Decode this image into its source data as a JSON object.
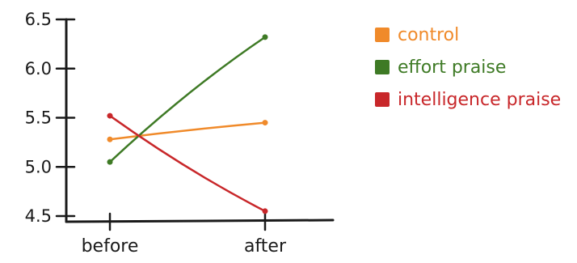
{
  "chart_data": {
    "type": "line",
    "title": "",
    "xlabel": "",
    "ylabel": "",
    "categories": [
      "before",
      "after"
    ],
    "y_ticks": [
      "4.5",
      "5.0",
      "5.5",
      "6.0",
      "6.5"
    ],
    "ylim": [
      4.5,
      6.5
    ],
    "grid": false,
    "legend_position": "right",
    "series": [
      {
        "name": "control",
        "values": [
          5.28,
          5.45
        ],
        "color": "#f08a2a"
      },
      {
        "name": "effort praise",
        "values": [
          5.05,
          6.32
        ],
        "color": "#3e7a25"
      },
      {
        "name": "intelligence praise",
        "values": [
          5.52,
          4.55
        ],
        "color": "#c8272a"
      }
    ]
  }
}
